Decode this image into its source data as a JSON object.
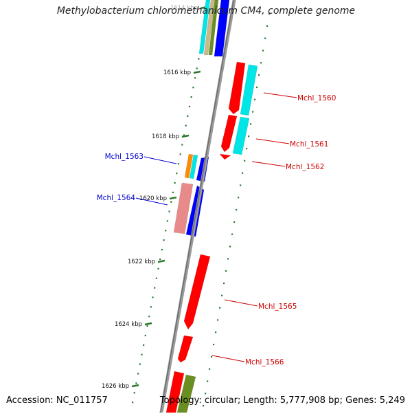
{
  "map": {
    "title": "Methylobacterium chloromethanicum CM4, complete genome",
    "accession": "Accession: NC_011757",
    "summary": "Topology: circular; Length: 5,777,908 bp; Genes: 5,249"
  },
  "colors": {
    "backbone": "#888888",
    "tick": "#2a7a2a",
    "gene_red": "#ff0000",
    "gene_blue": "#0000ff",
    "gene_cyan": "#00e5e5",
    "gene_orange": "#ff8c00",
    "gene_pink": "#e88a8a",
    "gene_olive": "#6b8e23",
    "gene_tan": "#c8b88a",
    "label_red": "#cc0000",
    "label_blue": "#0000cc"
  },
  "ticks": [
    {
      "label": "1614 kbp"
    },
    {
      "label": "1616 kbp"
    },
    {
      "label": "1618 kbp"
    },
    {
      "label": "1620 kbp"
    },
    {
      "label": "1622 kbp"
    },
    {
      "label": "1624 kbp"
    },
    {
      "label": "1626 kbp"
    }
  ],
  "genes": [
    {
      "name": "Mchl_1560"
    },
    {
      "name": "Mchl_1561"
    },
    {
      "name": "Mchl_1562"
    },
    {
      "name": "Mchl_1563"
    },
    {
      "name": "Mchl_1564"
    },
    {
      "name": "Mchl_1565"
    },
    {
      "name": "Mchl_1566"
    }
  ]
}
